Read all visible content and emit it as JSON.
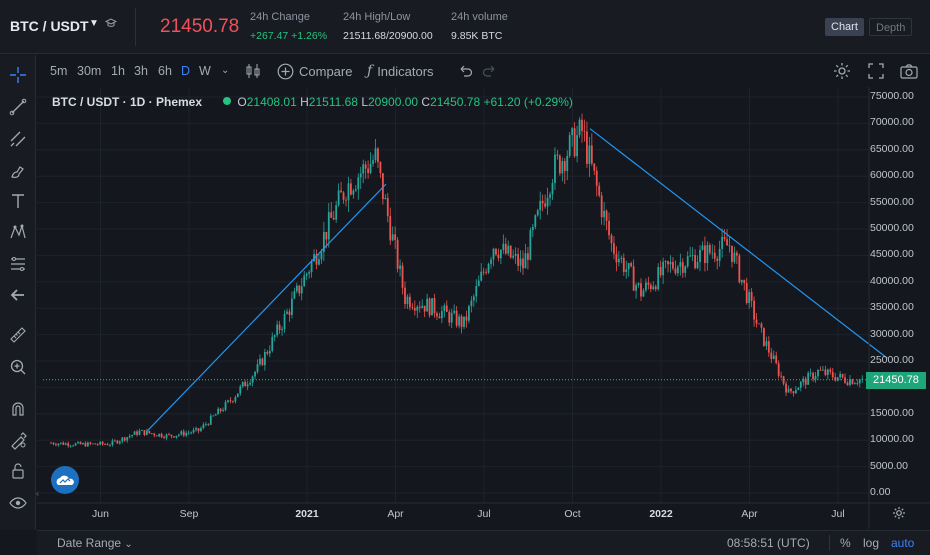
{
  "market": {
    "pair": "BTC / USDT",
    "last_price": "21450.78",
    "change_label": "24h Change",
    "change_value": "+267.47 +1.26%",
    "highlow_label": "24h High/Low",
    "highlow_value": "21511.68/20900.00",
    "volume_label": "24h volume",
    "volume_value": "9.85K BTC",
    "views": {
      "chart": "Chart",
      "depth": "Depth"
    }
  },
  "toolbar": {
    "timeframes": [
      "5m",
      "30m",
      "1h",
      "3h",
      "6h",
      "D",
      "W"
    ],
    "active_timeframe": "D",
    "compare": "Compare",
    "indicators": "Indicators"
  },
  "legend": {
    "symbol": "BTC / USDT · 1D · Phemex",
    "open_k": "O",
    "open_v": "21408.01",
    "high_k": "H",
    "high_v": "21511.68",
    "low_k": "L",
    "low_v": "20900.00",
    "close_k": "C",
    "close_v": "21450.78",
    "change": "+61.20 (+0.29%)"
  },
  "colors": {
    "up": "#26a69a",
    "down": "#ef5350",
    "trendline": "#2196f3",
    "last_price_tag": "#1fa57a",
    "accent": "#3b82f6"
  },
  "chart_data": {
    "type": "candlestick",
    "title": "BTC / USDT 1D Phemex",
    "ylim": [
      0,
      75000
    ],
    "y_ticks": [
      "75000.00",
      "70000.00",
      "65000.00",
      "60000.00",
      "55000.00",
      "50000.00",
      "45000.00",
      "40000.00",
      "35000.00",
      "30000.00",
      "25000.00",
      "20000.00",
      "15000.00",
      "10000.00",
      "5000.00",
      "0.00"
    ],
    "x_ticks": [
      "Jun",
      "Sep",
      "2021",
      "Apr",
      "Jul",
      "Oct",
      "2022",
      "Apr",
      "Jul"
    ],
    "last_price": 21450.78,
    "last_price_label": "21450.78",
    "approx_close_path": [
      {
        "t": "2020-05",
        "close": 9500
      },
      {
        "t": "2020-06",
        "close": 9200
      },
      {
        "t": "2020-07",
        "close": 9300
      },
      {
        "t": "2020-08",
        "close": 11600
      },
      {
        "t": "2020-09",
        "close": 10800
      },
      {
        "t": "2020-10",
        "close": 11800
      },
      {
        "t": "2020-11",
        "close": 17000
      },
      {
        "t": "2020-12",
        "close": 23500
      },
      {
        "t": "2021-01",
        "close": 34000
      },
      {
        "t": "2021-02",
        "close": 45500
      },
      {
        "t": "2021-03",
        "close": 58000
      },
      {
        "t": "2021-04",
        "close": 63500
      },
      {
        "t": "2021-05",
        "close": 37000
      },
      {
        "t": "2021-06",
        "close": 35000
      },
      {
        "t": "2021-07",
        "close": 32000
      },
      {
        "t": "2021-08",
        "close": 47000
      },
      {
        "t": "2021-09",
        "close": 43000
      },
      {
        "t": "2021-10",
        "close": 61000
      },
      {
        "t": "2021-11",
        "close": 68500
      },
      {
        "t": "2021-12",
        "close": 47000
      },
      {
        "t": "2022-01",
        "close": 38000
      },
      {
        "t": "2022-02",
        "close": 43000
      },
      {
        "t": "2022-03",
        "close": 45000
      },
      {
        "t": "2022-04",
        "close": 47000
      },
      {
        "t": "2022-05",
        "close": 31000
      },
      {
        "t": "2022-06",
        "close": 19000
      },
      {
        "t": "2022-07",
        "close": 23000
      },
      {
        "t": "2022-08",
        "close": 21450
      }
    ],
    "trendlines": [
      {
        "from": {
          "t": "2020-08",
          "price": 11800
        },
        "to": {
          "t": "2021-03",
          "price": 58500
        }
      },
      {
        "from": {
          "t": "2021-11",
          "price": 69000
        },
        "to": {
          "t": "2022-08",
          "price": 25500
        }
      }
    ]
  },
  "bottom": {
    "date_range": "Date Range",
    "clock": "08:58:51 (UTC)",
    "percent": "%",
    "log": "log",
    "auto": "auto"
  }
}
